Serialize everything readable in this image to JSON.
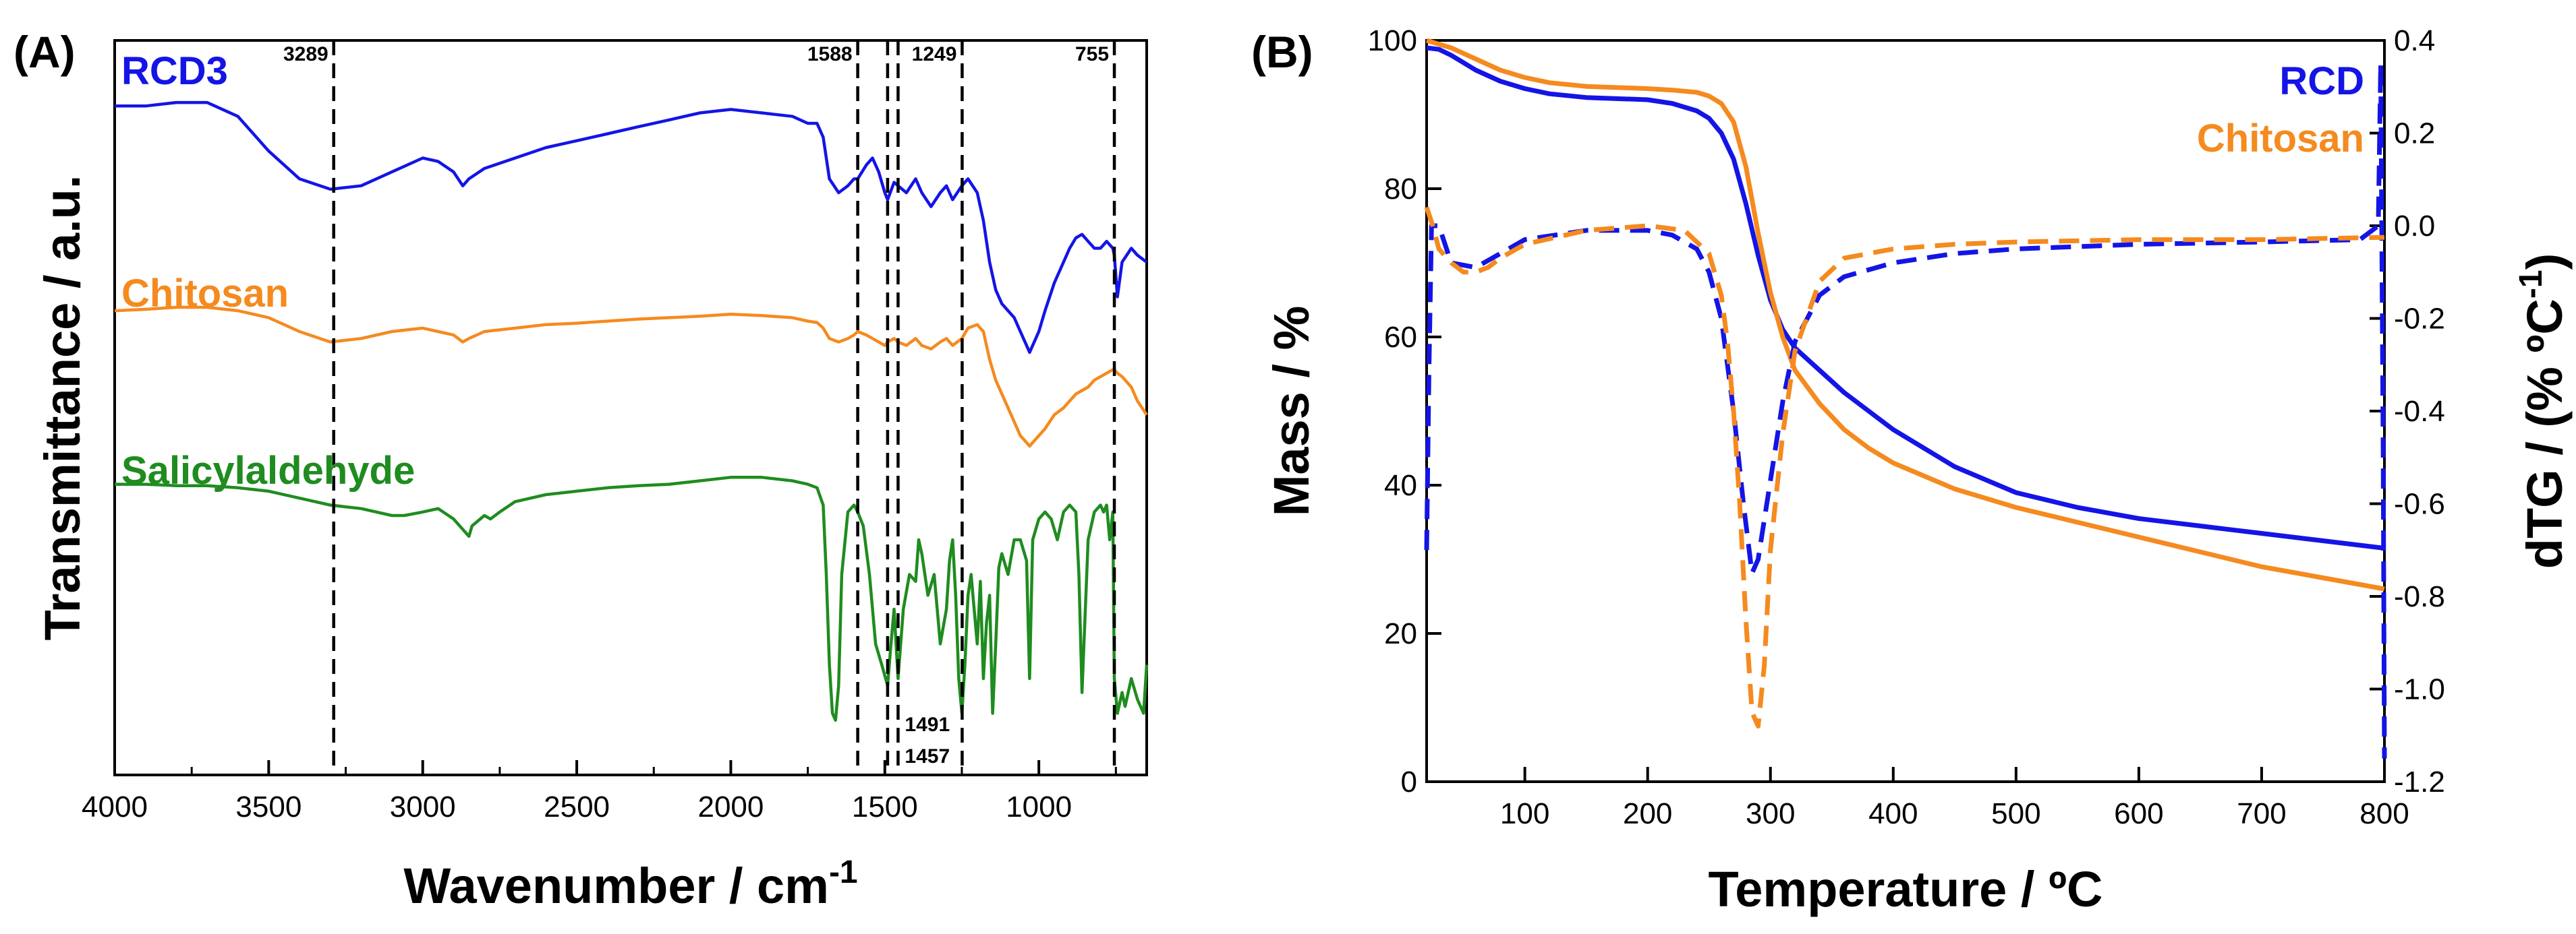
{
  "chart_data": [
    {
      "panel": "(A)",
      "type": "line",
      "xlabel": "Wavenumber / cm",
      "xlabel_sup": "-1",
      "ylabel": "Transmittance / a.u.",
      "xlim": [
        4000,
        650
      ],
      "xticks": [
        "4000",
        "3500",
        "3000",
        "2500",
        "2000",
        "1500",
        "1000"
      ],
      "xtick_values": [
        4000,
        3500,
        3000,
        2500,
        2000,
        1500,
        1000
      ],
      "annotations": [
        {
          "label": "3289",
          "value": 3289
        },
        {
          "label": "1588",
          "value": 1588
        },
        {
          "label": "1491",
          "value": 1491
        },
        {
          "label": "1457",
          "value": 1457
        },
        {
          "label": "1249",
          "value": 1249
        },
        {
          "label": "755",
          "value": 755
        }
      ],
      "series": [
        {
          "name": "RCD3",
          "color": "#1414e6",
          "x": [
            4000,
            3900,
            3800,
            3700,
            3600,
            3500,
            3400,
            3300,
            3200,
            3100,
            3000,
            2950,
            2900,
            2870,
            2850,
            2800,
            2700,
            2600,
            2500,
            2400,
            2300,
            2200,
            2100,
            2000,
            1900,
            1800,
            1750,
            1720,
            1700,
            1680,
            1650,
            1620,
            1600,
            1588,
            1560,
            1540,
            1520,
            1500,
            1491,
            1470,
            1457,
            1430,
            1400,
            1380,
            1350,
            1320,
            1300,
            1280,
            1250,
            1230,
            1200,
            1180,
            1160,
            1140,
            1120,
            1100,
            1080,
            1060,
            1040,
            1030,
            1020,
            1000,
            980,
            950,
            920,
            900,
            880,
            860,
            840,
            820,
            800,
            780,
            760,
            755,
            745,
            730,
            700,
            680,
            650
          ],
          "y": [
            0.925,
            0.925,
            0.93,
            0.93,
            0.91,
            0.86,
            0.82,
            0.805,
            0.81,
            0.83,
            0.85,
            0.845,
            0.83,
            0.81,
            0.82,
            0.835,
            0.85,
            0.865,
            0.875,
            0.885,
            0.895,
            0.905,
            0.915,
            0.92,
            0.915,
            0.91,
            0.9,
            0.9,
            0.88,
            0.82,
            0.8,
            0.81,
            0.82,
            0.82,
            0.84,
            0.85,
            0.83,
            0.8,
            0.79,
            0.815,
            0.81,
            0.8,
            0.82,
            0.8,
            0.78,
            0.8,
            0.81,
            0.79,
            0.81,
            0.82,
            0.8,
            0.76,
            0.7,
            0.66,
            0.64,
            0.63,
            0.62,
            0.6,
            0.58,
            0.57,
            0.58,
            0.6,
            0.63,
            0.67,
            0.7,
            0.72,
            0.735,
            0.74,
            0.73,
            0.72,
            0.72,
            0.73,
            0.72,
            0.71,
            0.65,
            0.7,
            0.72,
            0.71,
            0.7
          ]
        },
        {
          "name": "Chitosan",
          "color": "#f58a1f",
          "x": [
            4000,
            3900,
            3800,
            3700,
            3600,
            3500,
            3400,
            3300,
            3200,
            3100,
            3000,
            2950,
            2900,
            2870,
            2850,
            2800,
            2700,
            2600,
            2500,
            2400,
            2300,
            2200,
            2100,
            2000,
            1900,
            1800,
            1750,
            1720,
            1700,
            1680,
            1650,
            1620,
            1600,
            1588,
            1560,
            1540,
            1520,
            1500,
            1491,
            1470,
            1457,
            1430,
            1400,
            1380,
            1350,
            1320,
            1300,
            1280,
            1250,
            1230,
            1200,
            1180,
            1160,
            1140,
            1120,
            1100,
            1080,
            1060,
            1040,
            1030,
            1020,
            1000,
            980,
            950,
            920,
            900,
            880,
            860,
            840,
            820,
            800,
            780,
            760,
            755,
            745,
            730,
            700,
            680,
            650
          ],
          "y": [
            0.63,
            0.632,
            0.635,
            0.635,
            0.63,
            0.62,
            0.6,
            0.585,
            0.59,
            0.6,
            0.605,
            0.6,
            0.595,
            0.585,
            0.59,
            0.6,
            0.605,
            0.61,
            0.612,
            0.615,
            0.618,
            0.62,
            0.622,
            0.625,
            0.623,
            0.62,
            0.615,
            0.613,
            0.605,
            0.59,
            0.585,
            0.59,
            0.595,
            0.6,
            0.595,
            0.59,
            0.585,
            0.58,
            0.585,
            0.59,
            0.585,
            0.58,
            0.59,
            0.58,
            0.575,
            0.585,
            0.59,
            0.58,
            0.59,
            0.605,
            0.61,
            0.6,
            0.56,
            0.53,
            0.51,
            0.49,
            0.47,
            0.45,
            0.44,
            0.435,
            0.44,
            0.45,
            0.46,
            0.48,
            0.49,
            0.5,
            0.51,
            0.515,
            0.52,
            0.53,
            0.535,
            0.54,
            0.545,
            0.545,
            0.54,
            0.535,
            0.52,
            0.5,
            0.48
          ]
        },
        {
          "name": "Salicylaldehyde",
          "color": "#1f8c1f",
          "x": [
            4000,
            3900,
            3800,
            3700,
            3600,
            3500,
            3400,
            3300,
            3200,
            3100,
            3060,
            3000,
            2950,
            2900,
            2860,
            2850,
            2840,
            2800,
            2780,
            2750,
            2700,
            2600,
            2500,
            2400,
            2300,
            2200,
            2100,
            2000,
            1900,
            1800,
            1750,
            1720,
            1700,
            1690,
            1680,
            1670,
            1660,
            1650,
            1640,
            1620,
            1600,
            1588,
            1570,
            1550,
            1530,
            1510,
            1491,
            1480,
            1470,
            1457,
            1440,
            1420,
            1400,
            1390,
            1380,
            1360,
            1340,
            1320,
            1300,
            1290,
            1280,
            1270,
            1260,
            1250,
            1240,
            1230,
            1220,
            1210,
            1200,
            1190,
            1180,
            1170,
            1160,
            1150,
            1140,
            1130,
            1120,
            1100,
            1080,
            1060,
            1040,
            1030,
            1020,
            1000,
            980,
            960,
            940,
            920,
            900,
            880,
            870,
            860,
            840,
            820,
            800,
            790,
            780,
            770,
            760,
            755,
            745,
            730,
            720,
            700,
            680,
            660,
            650
          ],
          "y": [
            0.38,
            0.38,
            0.378,
            0.378,
            0.375,
            0.37,
            0.36,
            0.35,
            0.345,
            0.335,
            0.335,
            0.34,
            0.345,
            0.33,
            0.31,
            0.305,
            0.32,
            0.335,
            0.33,
            0.34,
            0.355,
            0.365,
            0.37,
            0.375,
            0.378,
            0.38,
            0.385,
            0.39,
            0.39,
            0.385,
            0.38,
            0.375,
            0.35,
            0.25,
            0.12,
            0.05,
            0.04,
            0.09,
            0.25,
            0.34,
            0.35,
            0.34,
            0.32,
            0.25,
            0.15,
            0.12,
            0.09,
            0.15,
            0.2,
            0.1,
            0.2,
            0.25,
            0.24,
            0.3,
            0.28,
            0.22,
            0.25,
            0.15,
            0.2,
            0.27,
            0.3,
            0.22,
            0.1,
            0.05,
            0.12,
            0.22,
            0.25,
            0.2,
            0.15,
            0.24,
            0.1,
            0.18,
            0.22,
            0.05,
            0.15,
            0.26,
            0.28,
            0.25,
            0.3,
            0.3,
            0.27,
            0.1,
            0.3,
            0.33,
            0.34,
            0.33,
            0.3,
            0.34,
            0.35,
            0.34,
            0.25,
            0.08,
            0.3,
            0.34,
            0.35,
            0.34,
            0.35,
            0.3,
            0.34,
            0.1,
            0.05,
            0.08,
            0.06,
            0.1,
            0.07,
            0.05,
            0.12
          ]
        }
      ]
    },
    {
      "panel": "(B)",
      "type": "line",
      "xlabel": "Temperature / ºC",
      "ylabel": "Mass / %",
      "y2label": "dTG / (% ºC",
      "y2label_sup": "-1",
      "y2label_end": ")",
      "xlim": [
        20,
        800
      ],
      "ylim": [
        0,
        100
      ],
      "y2lim": [
        -1.2,
        0.4
      ],
      "xticks": [
        "100",
        "200",
        "300",
        "400",
        "500",
        "600",
        "700",
        "800"
      ],
      "xtick_values": [
        100,
        200,
        300,
        400,
        500,
        600,
        700,
        800
      ],
      "yticks": [
        "0",
        "20",
        "40",
        "60",
        "80",
        "100"
      ],
      "ytick_values": [
        0,
        20,
        40,
        60,
        80,
        100
      ],
      "y2ticks": [
        "-1.2",
        "-1.0",
        "-0.8",
        "-0.6",
        "-0.4",
        "-0.2",
        "0.0",
        "0.2",
        "0.4"
      ],
      "y2tick_values": [
        -1.2,
        -1.0,
        -0.8,
        -0.6,
        -0.4,
        -0.2,
        0.0,
        0.2,
        0.4
      ],
      "legend": [
        "RCD",
        "Chitosan"
      ],
      "series": [
        {
          "name": "RCD",
          "color": "#1414e6",
          "kind": "mass",
          "axis": "left",
          "x": [
            20,
            30,
            40,
            60,
            80,
            100,
            120,
            150,
            200,
            220,
            240,
            250,
            260,
            270,
            280,
            290,
            300,
            310,
            320,
            340,
            360,
            380,
            400,
            450,
            500,
            550,
            600,
            650,
            700,
            750,
            800
          ],
          "y": [
            99,
            98.8,
            98,
            96,
            94.5,
            93.5,
            92.8,
            92.3,
            92,
            91.5,
            90.5,
            89.5,
            87.5,
            84,
            78,
            71,
            65,
            61,
            58.5,
            55.5,
            52.5,
            50,
            47.5,
            42.5,
            39,
            37,
            35.5,
            34.5,
            33.5,
            32.5,
            31.5
          ]
        },
        {
          "name": "Chitosan",
          "color": "#f58a1f",
          "kind": "mass",
          "axis": "left",
          "x": [
            20,
            30,
            40,
            60,
            80,
            100,
            120,
            150,
            200,
            220,
            240,
            250,
            260,
            270,
            280,
            290,
            300,
            310,
            320,
            340,
            360,
            380,
            400,
            450,
            500,
            550,
            600,
            650,
            700,
            750,
            800
          ],
          "y": [
            100,
            99.5,
            99,
            97.5,
            96,
            95,
            94.3,
            93.8,
            93.5,
            93.3,
            93,
            92.5,
            91.5,
            89,
            83,
            74,
            66,
            60,
            55.5,
            51,
            47.5,
            45,
            43,
            39.5,
            37,
            35,
            33,
            31,
            29,
            27.5,
            26
          ]
        },
        {
          "name": "RCD",
          "color": "#1414e6",
          "kind": "dTG",
          "axis": "right",
          "dashed": true,
          "x": [
            20,
            22,
            24,
            30,
            40,
            60,
            80,
            100,
            150,
            180,
            200,
            220,
            240,
            250,
            260,
            270,
            278,
            285,
            290,
            300,
            310,
            320,
            340,
            360,
            400,
            450,
            500,
            600,
            700,
            780,
            795,
            797,
            799,
            800
          ],
          "y": [
            -0.7,
            -0.3,
            0.0,
            0.0,
            -0.08,
            -0.09,
            -0.06,
            -0.03,
            -0.01,
            -0.01,
            -0.01,
            -0.02,
            -0.05,
            -0.1,
            -0.2,
            -0.4,
            -0.6,
            -0.75,
            -0.72,
            -0.55,
            -0.38,
            -0.25,
            -0.15,
            -0.11,
            -0.08,
            -0.06,
            -0.05,
            -0.04,
            -0.035,
            -0.03,
            0.0,
            0.35,
            -0.5,
            -1.15
          ]
        },
        {
          "name": "Chitosan",
          "color": "#f58a1f",
          "kind": "dTG",
          "axis": "right",
          "dashed": true,
          "x": [
            20,
            25,
            30,
            40,
            50,
            60,
            70,
            80,
            100,
            150,
            200,
            230,
            250,
            260,
            265,
            270,
            275,
            280,
            285,
            290,
            295,
            300,
            310,
            320,
            340,
            360,
            400,
            450,
            500,
            600,
            700,
            800
          ],
          "y": [
            0.04,
            0.0,
            -0.05,
            -0.08,
            -0.1,
            -0.1,
            -0.09,
            -0.07,
            -0.04,
            -0.01,
            0.0,
            -0.01,
            -0.06,
            -0.15,
            -0.25,
            -0.4,
            -0.6,
            -0.85,
            -1.05,
            -1.08,
            -0.95,
            -0.7,
            -0.45,
            -0.27,
            -0.12,
            -0.07,
            -0.05,
            -0.04,
            -0.035,
            -0.03,
            -0.03,
            -0.025
          ]
        }
      ]
    }
  ]
}
